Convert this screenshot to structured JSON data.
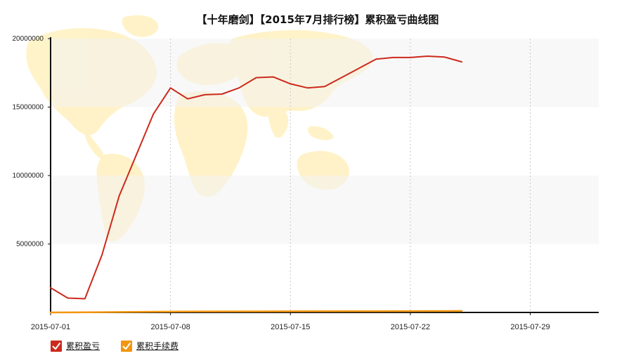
{
  "chart_data": {
    "type": "line",
    "title": "【十年磨剑】【2015年7月排行榜】累积盈亏曲线图",
    "xlabel": "",
    "ylabel": "",
    "ylim": [
      0,
      20000000
    ],
    "y_ticks": [
      "5000000",
      "10000000",
      "15000000",
      "20000000"
    ],
    "y_tick_values": [
      5000000,
      10000000,
      15000000,
      20000000
    ],
    "x_ticks": [
      "2015-07-01",
      "2015-07-08",
      "2015-07-15",
      "2015-07-22",
      "2015-07-29"
    ],
    "x": [
      "2015-07-01",
      "2015-07-02",
      "2015-07-03",
      "2015-07-04",
      "2015-07-05",
      "2015-07-06",
      "2015-07-07",
      "2015-07-08",
      "2015-07-09",
      "2015-07-10",
      "2015-07-11",
      "2015-07-12",
      "2015-07-13",
      "2015-07-14",
      "2015-07-15",
      "2015-07-16",
      "2015-07-17",
      "2015-07-18",
      "2015-07-19",
      "2015-07-20",
      "2015-07-21",
      "2015-07-22",
      "2015-07-23",
      "2015-07-24",
      "2015-07-25",
      "2015-07-26",
      "2015-07-27",
      "2015-07-28",
      "2015-07-29",
      "2015-07-30",
      "2015-07-31",
      "2015-08-01",
      "2015-08-02"
    ],
    "grid": "vertical-dotted",
    "legend_position": "bottom-left",
    "series": [
      {
        "name": "累积盈亏",
        "color": "#cc2a1c",
        "points": [
          [
            "2015-07-01",
            1800000
          ],
          [
            "2015-07-02",
            1050000
          ],
          [
            "2015-07-03",
            1000000
          ],
          [
            "2015-07-04",
            4200000
          ],
          [
            "2015-07-05",
            8500000
          ],
          [
            "2015-07-07",
            14500000
          ],
          [
            "2015-07-08",
            16400000
          ],
          [
            "2015-07-09",
            15600000
          ],
          [
            "2015-07-10",
            15900000
          ],
          [
            "2015-07-11",
            15950000
          ],
          [
            "2015-07-12",
            16400000
          ],
          [
            "2015-07-13",
            17150000
          ],
          [
            "2015-07-14",
            17200000
          ],
          [
            "2015-07-15",
            16700000
          ],
          [
            "2015-07-16",
            16400000
          ],
          [
            "2015-07-17",
            16500000
          ],
          [
            "2015-07-20",
            18500000
          ],
          [
            "2015-07-21",
            18620000
          ],
          [
            "2015-07-22",
            18620000
          ],
          [
            "2015-07-23",
            18720000
          ],
          [
            "2015-07-24",
            18650000
          ],
          [
            "2015-07-25",
            18300000
          ]
        ]
      },
      {
        "name": "累积手续费",
        "color": "#f2960f",
        "points": [
          [
            "2015-07-01",
            0
          ],
          [
            "2015-07-04",
            20000
          ],
          [
            "2015-07-07",
            50000
          ],
          [
            "2015-07-10",
            70000
          ],
          [
            "2015-07-15",
            80000
          ],
          [
            "2015-07-20",
            90000
          ],
          [
            "2015-07-25",
            110000
          ]
        ]
      }
    ]
  }
}
